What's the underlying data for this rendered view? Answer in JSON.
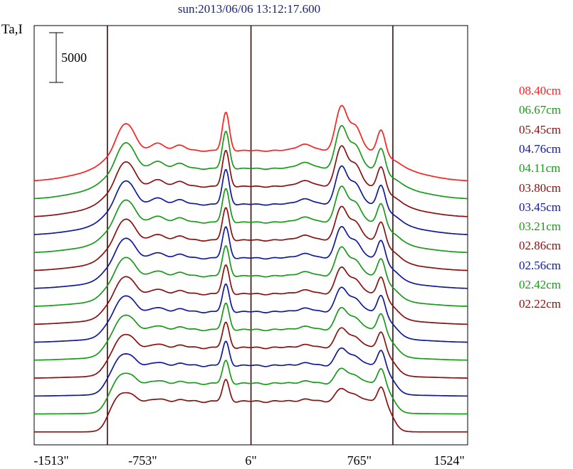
{
  "title": "sun:2013/06/06 13:12:17.600",
  "ylabel": "Ta,I",
  "scale_bar": {
    "label": "5000",
    "value": 5000
  },
  "chart_data": {
    "type": "line",
    "title": "sun:2013/06/06 13:12:17.600",
    "xlabel": "",
    "ylabel": "Ta,I",
    "x_tick_labels": [
      "-1513\"",
      "-753\"",
      "6\"",
      "765\"",
      "1524\""
    ],
    "x_ticks": [
      -1513,
      -753,
      6,
      765,
      1524
    ],
    "xlim": [
      -1513,
      1524
    ],
    "vertical_lines": [
      -1000,
      6,
      1000
    ],
    "colors": {
      "red": "#ff2020",
      "green": "#1a9a1a",
      "maroon": "#8b1010",
      "blue": "#101a9a"
    },
    "series": [
      {
        "name": "08.40cm",
        "color": "#ff2020"
      },
      {
        "name": "06.67cm",
        "color": "#1a9a1a"
      },
      {
        "name": "05.45cm",
        "color": "#8b1010"
      },
      {
        "name": "04.76cm",
        "color": "#101a9a"
      },
      {
        "name": "04.11cm",
        "color": "#1a9a1a"
      },
      {
        "name": "03.80cm",
        "color": "#8b1010"
      },
      {
        "name": "03.45cm",
        "color": "#101a9a"
      },
      {
        "name": "03.21cm",
        "color": "#1a9a1a"
      },
      {
        "name": "02.86cm",
        "color": "#8b1010"
      },
      {
        "name": "02.56cm",
        "color": "#101a9a"
      },
      {
        "name": "02.42cm",
        "color": "#1a9a1a"
      },
      {
        "name": "02.22cm",
        "color": "#8b1010"
      },
      {
        "color": "#101a9a"
      },
      {
        "color": "#1a9a1a"
      },
      {
        "color": "#8b1010"
      }
    ]
  }
}
